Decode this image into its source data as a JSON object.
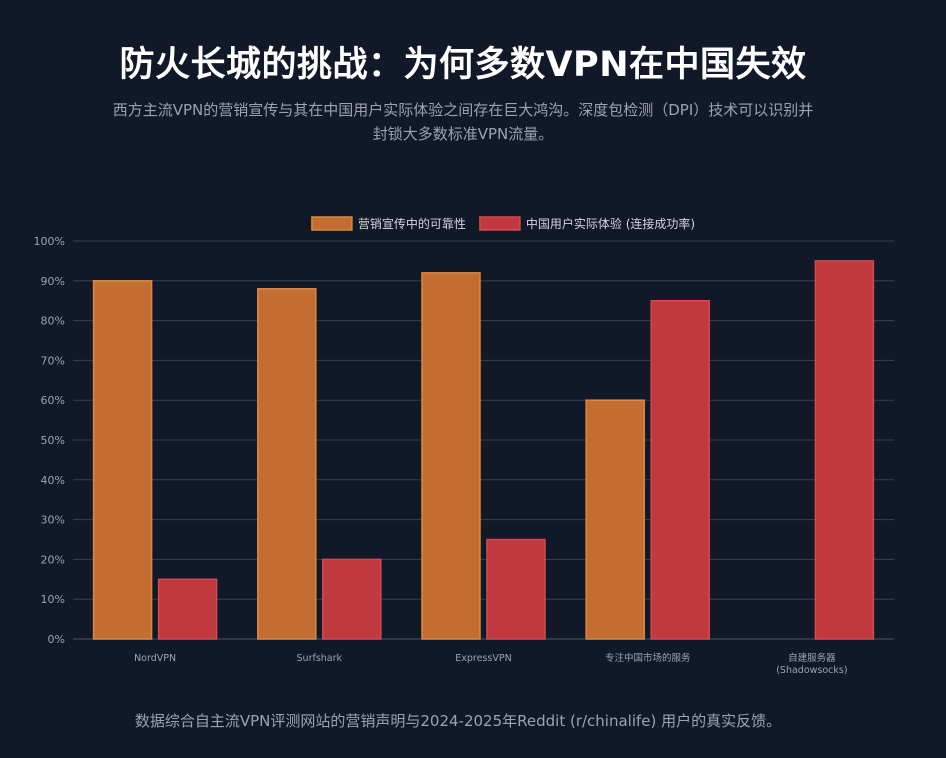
{
  "header": {
    "title": "防火长城的挑战：为何多数VPN在中国失效",
    "subtitle": "西方主流VPN的营销宣传与其在中国用户实际体验之间存在巨大鸿沟。深度包检测（DPI）技术可以识别并封锁大多数标准VPN流量。"
  },
  "footer": {
    "note": "数据综合自主流VPN评测网站的营销声明与2024-2025年Reddit (r/chinalife) 用户的真实反馈。"
  },
  "chart_data": {
    "type": "bar",
    "title": "",
    "xlabel": "",
    "ylabel": "",
    "ylim": [
      0,
      100
    ],
    "y_ticks": [
      0,
      10,
      20,
      30,
      40,
      50,
      60,
      70,
      80,
      90,
      100
    ],
    "y_tick_suffix": "%",
    "grid": true,
    "legend_position": "top-center",
    "categories": [
      [
        "NordVPN"
      ],
      [
        "Surfshark"
      ],
      [
        "ExpressVPN"
      ],
      [
        "专注中国市场的服务"
      ],
      [
        "自建服务器",
        "(Shadowsocks)"
      ]
    ],
    "series": [
      {
        "name": "营销宣传中的可靠性",
        "color": "#c46d30",
        "border": "#d98a45",
        "values": [
          90,
          88,
          92,
          60,
          null
        ]
      },
      {
        "name": "中国用户实际体验 (连接成功率)",
        "color": "#c0393f",
        "border": "#d34a50",
        "values": [
          15,
          20,
          25,
          85,
          95
        ]
      }
    ]
  }
}
